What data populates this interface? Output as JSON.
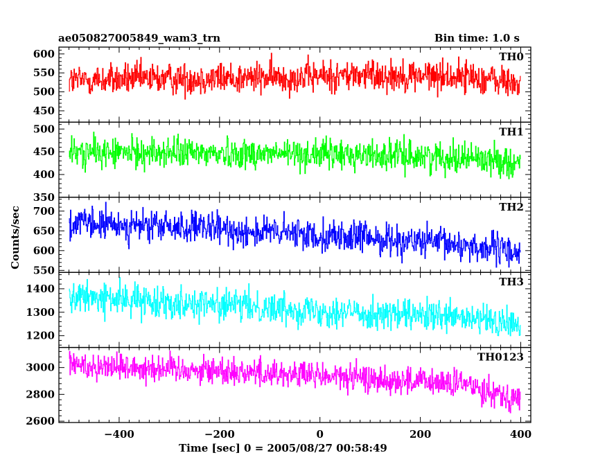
{
  "header": {
    "title_left": "ae050827005849_wam3_trn",
    "title_right": "Bin time: 1.0 s"
  },
  "chart_data": {
    "type": "line",
    "xlabel": "Time [sec] 0 = 2005/08/27 00:58:49",
    "ylabel": "Counts/sec",
    "xlim": [
      -520,
      420
    ],
    "x_ticks": [
      -400,
      -200,
      0,
      200,
      400
    ],
    "x_range": [
      -500,
      399
    ],
    "bin_time_s": 1.0,
    "panels": [
      {
        "name": "TH0",
        "color": "#ff0000",
        "ylim": [
          420,
          618
        ],
        "yticks": [
          450,
          500,
          550,
          600
        ],
        "trend": [
          [
            -500,
            530
          ],
          [
            -300,
            535
          ],
          [
            -100,
            537
          ],
          [
            100,
            545
          ],
          [
            300,
            540
          ],
          [
            399,
            520
          ]
        ],
        "noise": 38
      },
      {
        "name": "TH1",
        "color": "#00ff00",
        "ylim": [
          350,
          515
        ],
        "yticks": [
          350,
          400,
          450,
          500
        ],
        "trend": [
          [
            -500,
            448
          ],
          [
            -300,
            448
          ],
          [
            -100,
            446
          ],
          [
            100,
            443
          ],
          [
            300,
            438
          ],
          [
            399,
            425
          ]
        ],
        "noise": 30
      },
      {
        "name": "TH2",
        "color": "#0000ff",
        "ylim": [
          545,
          735
        ],
        "yticks": [
          550,
          600,
          650,
          700
        ],
        "trend": [
          [
            -500,
            668
          ],
          [
            -300,
            660
          ],
          [
            -100,
            646
          ],
          [
            100,
            632
          ],
          [
            300,
            612
          ],
          [
            399,
            595
          ]
        ],
        "noise": 36
      },
      {
        "name": "TH3",
        "color": "#00ffff",
        "ylim": [
          1150,
          1470
        ],
        "yticks": [
          1200,
          1300,
          1400
        ],
        "trend": [
          [
            -500,
            1365
          ],
          [
            -300,
            1345
          ],
          [
            -100,
            1320
          ],
          [
            100,
            1295
          ],
          [
            300,
            1270
          ],
          [
            399,
            1245
          ]
        ],
        "noise": 60
      },
      {
        "name": "TH0123",
        "color": "#ff00ff",
        "ylim": [
          2590,
          3150
        ],
        "yticks": [
          2600,
          2800,
          3000
        ],
        "trend": [
          [
            -500,
            3020
          ],
          [
            -300,
            2995
          ],
          [
            -100,
            2960
          ],
          [
            100,
            2915
          ],
          [
            300,
            2870
          ],
          [
            399,
            2760
          ]
        ],
        "noise": 95
      }
    ]
  }
}
